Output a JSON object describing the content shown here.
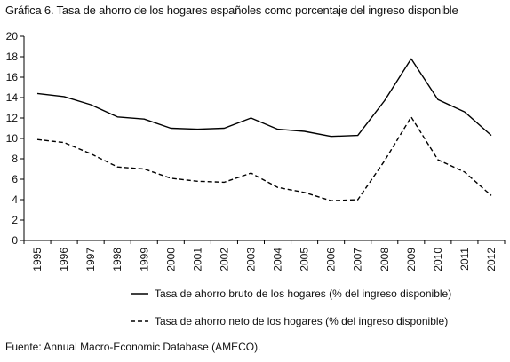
{
  "chart_data": {
    "type": "line",
    "title": "Gráfica 6. Tasa de ahorro de los hogares españoles como porcentaje del ingreso disponible",
    "source": "Fuente: Annual Macro-Economic Database (AMECO).",
    "categories": [
      "1995",
      "1996",
      "1997",
      "1998",
      "1999",
      "2000",
      "2001",
      "2002",
      "2003",
      "2004",
      "2005",
      "2006",
      "2007",
      "2008",
      "2009",
      "2010",
      "2011",
      "2012"
    ],
    "yticks": [
      "0",
      "2",
      "4",
      "6",
      "8",
      "10",
      "12",
      "14",
      "16",
      "18",
      "20"
    ],
    "ylim": [
      0,
      20
    ],
    "grid": false,
    "legend_position": "bottom",
    "series": [
      {
        "name": "Tasa de ahorro bruto de los hogares (% del ingreso disponible)",
        "style": "solid",
        "values": [
          14.4,
          14.1,
          13.3,
          12.1,
          11.9,
          11.0,
          10.9,
          11.0,
          12.0,
          10.9,
          10.7,
          10.2,
          10.3,
          13.7,
          17.8,
          13.8,
          12.6,
          10.3
        ]
      },
      {
        "name": "Tasa de ahorro neto de los hogares (% del ingreso disponible)",
        "style": "dashed",
        "values": [
          9.9,
          9.6,
          8.5,
          7.2,
          7.0,
          6.1,
          5.8,
          5.7,
          6.6,
          5.2,
          4.7,
          3.9,
          4.0,
          7.8,
          12.1,
          7.9,
          6.7,
          4.4
        ]
      }
    ]
  }
}
